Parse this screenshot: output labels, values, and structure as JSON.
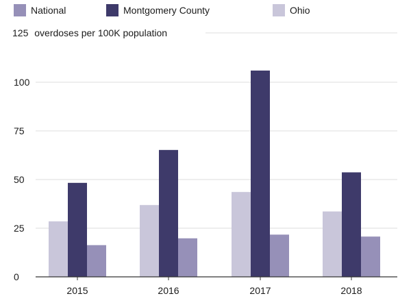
{
  "chart_data": {
    "type": "bar",
    "categories": [
      "2015",
      "2016",
      "2017",
      "2018"
    ],
    "series": [
      {
        "name": "Ohio",
        "values": [
          28.5,
          36.9,
          43.6,
          33.6
        ],
        "color": "#c9c6da"
      },
      {
        "name": "Montgomery County",
        "values": [
          48.3,
          65.2,
          106.0,
          53.7
        ],
        "color": "#3e3a6a"
      },
      {
        "name": "National",
        "values": [
          16.3,
          19.8,
          21.7,
          20.7
        ],
        "color": "#9690b8"
      }
    ],
    "legend": [
      {
        "name": "National",
        "color": "#9690b8"
      },
      {
        "name": "Montgomery County",
        "color": "#3e3a6a"
      },
      {
        "name": "Ohio",
        "color": "#c9c6da"
      }
    ],
    "ylabel": "overdoses per 100K population",
    "top_tick": "125",
    "yticks": [
      "0",
      "25",
      "50",
      "75",
      "100"
    ],
    "ylim": [
      0,
      125
    ],
    "grid": true,
    "legend_position": "top"
  }
}
